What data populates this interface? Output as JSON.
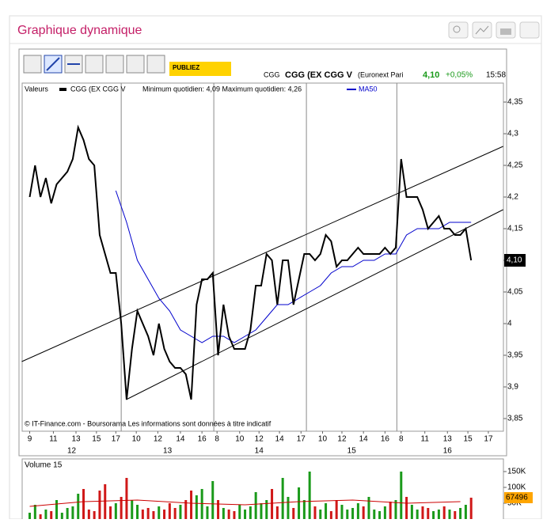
{
  "header": {
    "title": "Graphique dynamique"
  },
  "toolbar": {
    "ad_text": "PUBLIEZ",
    "ticker": "CGG",
    "name": "CGG (EX CGG V",
    "market": "(Euronext Pari",
    "price": "4,10",
    "change": "+0,05%",
    "time": "15:58"
  },
  "chart_data": [
    {
      "type": "line",
      "legend_label": "Valeurs",
      "daily_range": "Minimum quotidien: 4,09 Maximum quotidien: 4,26",
      "series": [
        {
          "name": "CGG (EX CGG V",
          "color": "#000000",
          "x": [
            0,
            0.5,
            1,
            1.5,
            2,
            2.5,
            3,
            3.5,
            4,
            4.5,
            5,
            5.5,
            6,
            6.5,
            7,
            7.5,
            8,
            8.5,
            9,
            9.5,
            10,
            10.5,
            11,
            11.5,
            12,
            12.5,
            13,
            13.5,
            14,
            14.5,
            15,
            15.5,
            16,
            16.5,
            17,
            17.5,
            18,
            18.5,
            19,
            19.5,
            20,
            20.5,
            21,
            21.5,
            22,
            22.5,
            23,
            23.5,
            24,
            24.5,
            25,
            25.5,
            26,
            26.5,
            27,
            27.5,
            28,
            28.5,
            29,
            29.5,
            30,
            30.5,
            31,
            31.5,
            32,
            32.5,
            33,
            33.5,
            34,
            34.5,
            35,
            35.5,
            36,
            36.5,
            37,
            37.5,
            38,
            38.5,
            39,
            39.5,
            40,
            40.5,
            41
          ],
          "values": [
            4.2,
            4.25,
            4.2,
            4.23,
            4.19,
            4.22,
            4.23,
            4.24,
            4.26,
            4.31,
            4.29,
            4.26,
            4.25,
            4.14,
            4.11,
            4.08,
            4.08,
            4.0,
            3.88,
            3.96,
            4.02,
            4.0,
            3.98,
            3.95,
            4.0,
            3.96,
            3.94,
            3.93,
            3.93,
            3.92,
            3.88,
            4.03,
            4.07,
            4.07,
            4.08,
            3.95,
            4.03,
            3.98,
            3.96,
            3.96,
            3.96,
            3.99,
            4.06,
            4.06,
            4.11,
            4.1,
            4.03,
            4.1,
            4.1,
            4.03,
            4.07,
            4.11,
            4.11,
            4.1,
            4.11,
            4.14,
            4.13,
            4.09,
            4.1,
            4.1,
            4.11,
            4.12,
            4.11,
            4.11,
            4.11,
            4.11,
            4.12,
            4.11,
            4.12,
            4.26,
            4.2,
            4.2,
            4.2,
            4.18,
            4.15,
            4.16,
            4.17,
            4.15,
            4.15,
            4.14,
            4.14,
            4.15,
            4.1
          ]
        },
        {
          "name": "MA50",
          "color": "#0000cc",
          "x": [
            8,
            9,
            10,
            11,
            12,
            13,
            14,
            15,
            16,
            17,
            18,
            19,
            20,
            21,
            22,
            23,
            24,
            25,
            26,
            27,
            28,
            29,
            30,
            31,
            32,
            33,
            34,
            35,
            36,
            37,
            38,
            39,
            40,
            41
          ],
          "values": [
            4.21,
            4.16,
            4.1,
            4.07,
            4.04,
            4.02,
            3.99,
            3.98,
            3.97,
            3.98,
            3.98,
            3.97,
            3.98,
            3.99,
            4.01,
            4.03,
            4.03,
            4.04,
            4.05,
            4.06,
            4.08,
            4.09,
            4.09,
            4.1,
            4.1,
            4.11,
            4.11,
            4.14,
            4.15,
            4.15,
            4.15,
            4.16,
            4.16,
            4.16
          ]
        }
      ],
      "trendlines": [
        {
          "x": [
            -0.74,
            43.97
          ],
          "y": [
            3.94,
            4.28
          ]
        },
        {
          "x": [
            8.97,
            43.97
          ],
          "y": [
            3.88,
            4.18
          ]
        }
      ],
      "day_separators": [
        8.5,
        17.1,
        25.7,
        34.1
      ],
      "xlim": [
        -0.7,
        44
      ],
      "xticks": [
        {
          "value": 0,
          "label": "9"
        },
        {
          "value": 2.2,
          "label": "11"
        },
        {
          "value": 4.3,
          "label": "13"
        },
        {
          "value": 6.2,
          "label": "15"
        },
        {
          "value": 8,
          "label": "17"
        },
        {
          "value": 9.9,
          "label": "10"
        },
        {
          "value": 11.9,
          "label": "12"
        },
        {
          "value": 14,
          "label": "14"
        },
        {
          "value": 16,
          "label": "16"
        },
        {
          "value": 17.4,
          "label": "8"
        },
        {
          "value": 19.5,
          "label": "10"
        },
        {
          "value": 21.3,
          "label": "12"
        },
        {
          "value": 23.2,
          "label": "14"
        },
        {
          "value": 25.2,
          "label": "17"
        },
        {
          "value": 27.2,
          "label": "10"
        },
        {
          "value": 29,
          "label": "12"
        },
        {
          "value": 31,
          "label": "14"
        },
        {
          "value": 33,
          "label": "16"
        },
        {
          "value": 34.5,
          "label": "8"
        },
        {
          "value": 36.7,
          "label": "11"
        },
        {
          "value": 38.8,
          "label": "13"
        },
        {
          "value": 40.7,
          "label": "15"
        },
        {
          "value": 42.6,
          "label": "17"
        }
      ],
      "day_labels": [
        {
          "value": 3.9,
          "label": "12"
        },
        {
          "value": 12.8,
          "label": "13"
        },
        {
          "value": 21.3,
          "label": "14"
        },
        {
          "value": 29.9,
          "label": "15"
        },
        {
          "value": 38.8,
          "label": "16"
        }
      ],
      "ylim": [
        3.83,
        4.38
      ],
      "yticks": [
        {
          "value": 3.85,
          "label": "3,85"
        },
        {
          "value": 3.9,
          "label": "3,9"
        },
        {
          "value": 3.95,
          "label": "3,95"
        },
        4,
        {
          "value": 4.05,
          "label": "4,05"
        },
        {
          "value": 4.1,
          "label": "4,1"
        },
        {
          "value": 4.15,
          "label": "4,15"
        },
        {
          "value": 4.2,
          "label": "4,2"
        },
        {
          "value": 4.25,
          "label": "4,25"
        },
        {
          "value": 4.3,
          "label": "4,3"
        },
        {
          "value": 4.35,
          "label": "4,35"
        }
      ],
      "last_price": {
        "value": 4.1,
        "label": "4,10"
      },
      "footnote": "© IT-Finance.com - Boursorama Les informations sont données à titre indicatif"
    },
    {
      "type": "bar",
      "title": "Volume 15",
      "up_color": "#1a9a1a",
      "down_color": "#d01818",
      "x": [
        0,
        0.5,
        1,
        1.5,
        2,
        2.5,
        3,
        3.5,
        4,
        4.5,
        5,
        5.5,
        6,
        6.5,
        7,
        7.5,
        8,
        8.5,
        9,
        9.5,
        10,
        10.5,
        11,
        11.5,
        12,
        12.5,
        13,
        13.5,
        14,
        14.5,
        15,
        15.5,
        16,
        16.5,
        17,
        17.5,
        18,
        18.5,
        19,
        19.5,
        20,
        20.5,
        21,
        21.5,
        22,
        22.5,
        23,
        23.5,
        24,
        24.5,
        25,
        25.5,
        26,
        26.5,
        27,
        27.5,
        28,
        28.5,
        29,
        29.5,
        30,
        30.5,
        31,
        31.5,
        32,
        32.5,
        33,
        33.5,
        34,
        34.5,
        35,
        35.5,
        36,
        36.5,
        37,
        37.5,
        38,
        38.5,
        39,
        39.5,
        40,
        40.5,
        41
      ],
      "values": [
        20000,
        45000,
        15000,
        30000,
        25000,
        60000,
        20000,
        35000,
        40000,
        80000,
        95000,
        30000,
        25000,
        90000,
        110000,
        40000,
        50000,
        70000,
        130000,
        60000,
        45000,
        30000,
        35000,
        25000,
        40000,
        30000,
        50000,
        35000,
        45000,
        60000,
        90000,
        75000,
        95000,
        40000,
        120000,
        60000,
        35000,
        30000,
        25000,
        45000,
        30000,
        40000,
        85000,
        50000,
        60000,
        95000,
        40000,
        130000,
        70000,
        35000,
        100000,
        60000,
        150000,
        40000,
        30000,
        50000,
        25000,
        60000,
        45000,
        30000,
        35000,
        50000,
        40000,
        70000,
        30000,
        25000,
        40000,
        55000,
        60000,
        150000,
        70000,
        45000,
        30000,
        40000,
        35000,
        25000,
        30000,
        40000,
        30000,
        25000,
        35000,
        45000,
        67496
      ],
      "ma": {
        "color": "#cc0000",
        "x": [
          0,
          5,
          10,
          15,
          20,
          25,
          30,
          35,
          40
        ],
        "values": [
          40000,
          55000,
          60000,
          50000,
          45000,
          55000,
          60000,
          50000,
          55000
        ]
      },
      "ylim": [
        0,
        190000
      ],
      "yticks": [
        {
          "value": 50000,
          "label": "50K"
        },
        {
          "value": 100000,
          "label": "100K"
        },
        {
          "value": 150000,
          "label": "150K"
        }
      ],
      "last_value": {
        "value": 67496,
        "label": "67496"
      }
    }
  ]
}
